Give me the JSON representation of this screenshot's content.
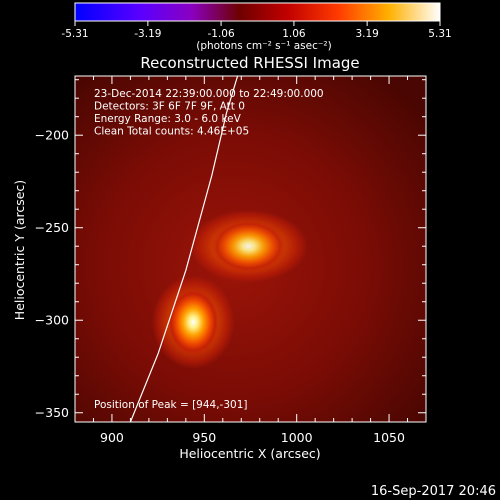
{
  "chart_data": {
    "type": "heatmap",
    "title": "Reconstructed RHESSI Image",
    "xlabel": "Heliocentric X (arcsec)",
    "ylabel": "Heliocentric Y (arcsec)",
    "xlim": [
      880,
      1070
    ],
    "ylim": [
      -355,
      -168
    ],
    "x_ticks": [
      900,
      950,
      1000,
      1050
    ],
    "y_ticks": [
      -200,
      -250,
      -300,
      -350
    ],
    "colorbar": {
      "ticks": [
        "-5.31",
        "-3.19",
        "-1.06",
        "1.06",
        "3.19",
        "5.31"
      ],
      "range": [
        -5.31,
        5.31
      ],
      "units": "(photons cm⁻² s⁻¹ asec⁻²)"
    },
    "annotations": [
      "23-Dec-2014 22:39:00.000 to 22:49:00.000",
      "Detectors: 3F 6F 7F 9F, Att 0",
      "Energy Range: 3.0 - 6.0 keV",
      "Clean     Total counts: 4.46E+05"
    ],
    "peak_label": "Position of Peak = [944,-301]",
    "sources": [
      {
        "x": 944,
        "y": -301,
        "peak": 5.31,
        "sigma_x": 7,
        "sigma_y": 9
      },
      {
        "x": 974,
        "y": -260,
        "peak": 4.3,
        "sigma_x": 10,
        "sigma_y": 7
      }
    ],
    "limb_curve": [
      [
        910,
        -355
      ],
      [
        925,
        -318
      ],
      [
        940,
        -273
      ],
      [
        954,
        -222
      ],
      [
        962,
        -188
      ],
      [
        968,
        -168
      ]
    ],
    "grid": false,
    "legend": "none"
  },
  "footer": {
    "date": "16-Sep-2017 20:46"
  }
}
